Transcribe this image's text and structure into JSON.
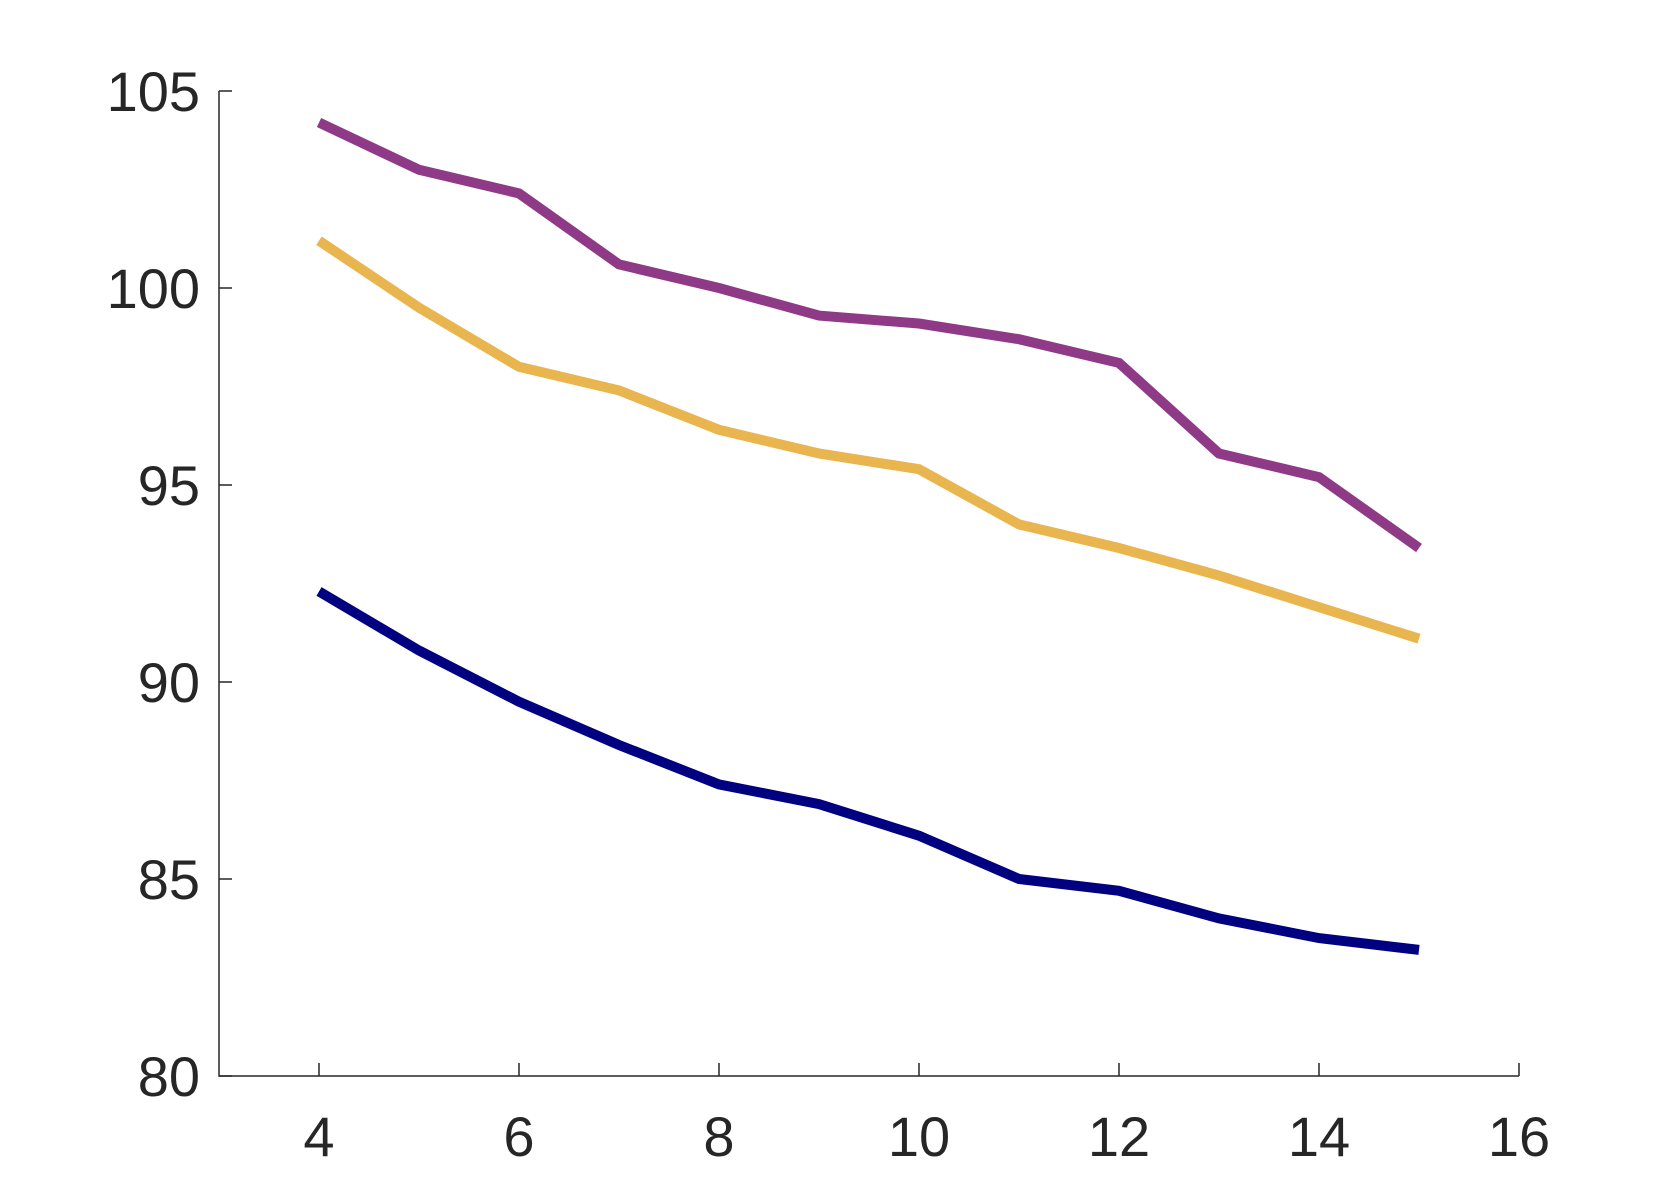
{
  "chart_data": {
    "type": "line",
    "title": "",
    "xlabel": "",
    "ylabel": "",
    "xlim": [
      3,
      16
    ],
    "ylim": [
      80,
      105
    ],
    "xticks": [
      4,
      6,
      8,
      10,
      12,
      14,
      16
    ],
    "yticks": [
      80,
      85,
      90,
      95,
      100,
      105
    ],
    "xtick_labels": [
      "4",
      "6",
      "8",
      "10",
      "12",
      "14",
      "16"
    ],
    "ytick_labels": [
      "80",
      "85",
      "90",
      "95",
      "100",
      "105"
    ],
    "grid": false,
    "legend": "none",
    "x": [
      4,
      5,
      6,
      7,
      8,
      9,
      10,
      11,
      12,
      13,
      14,
      15
    ],
    "series": [
      {
        "color": "#8e3a87",
        "values": [
          104.2,
          103.0,
          102.4,
          100.6,
          100.0,
          99.3,
          99.1,
          98.7,
          98.1,
          95.8,
          95.2,
          93.4
        ]
      },
      {
        "color": "#e8b54f",
        "values": [
          101.2,
          99.5,
          98.0,
          97.4,
          96.4,
          95.8,
          95.4,
          94.0,
          93.4,
          92.7,
          91.9,
          91.1
        ]
      },
      {
        "color": "#000080",
        "values": [
          92.3,
          90.8,
          89.5,
          88.4,
          87.4,
          86.9,
          86.1,
          85.0,
          84.7,
          84.0,
          83.5,
          83.2
        ]
      }
    ]
  }
}
